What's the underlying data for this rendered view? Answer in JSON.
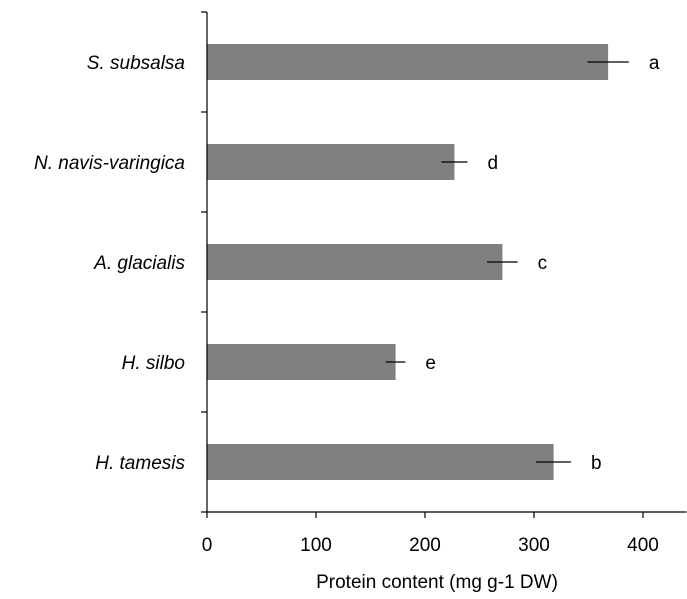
{
  "chart_data": {
    "type": "bar",
    "orientation": "horizontal",
    "categories": [
      "S. subsalsa",
      "N. navis-varingica",
      "A. glacialis",
      "H. silbo",
      "H. tamesis"
    ],
    "values": [
      368,
      227,
      271,
      173,
      318
    ],
    "errors": [
      19,
      12,
      14,
      9,
      16
    ],
    "significance_labels": [
      "a",
      "d",
      "c",
      "e",
      "b"
    ],
    "xlabel": "Protein content (mg g-1 DW)",
    "ylabel": "",
    "xlim": [
      0,
      440
    ],
    "xticks": [
      0,
      100,
      200,
      300,
      400
    ],
    "bar_color": "#808080",
    "grid": false,
    "legend": "none"
  }
}
